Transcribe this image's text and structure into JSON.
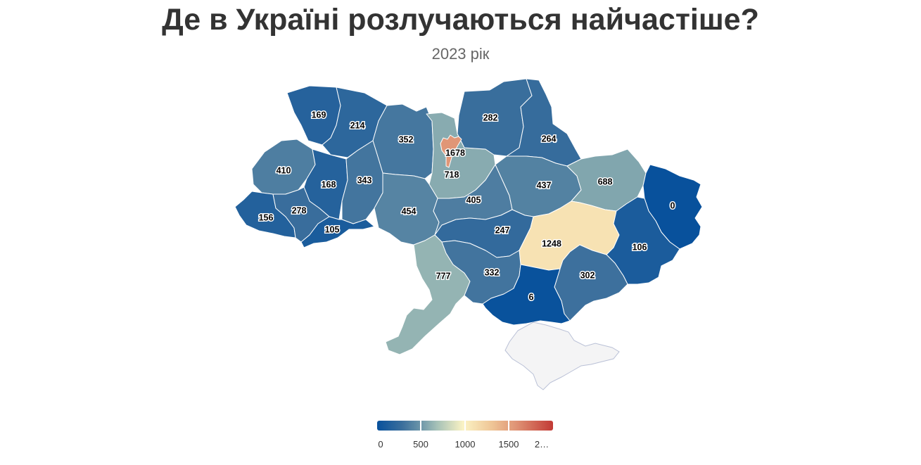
{
  "title": "Де в Україні розлучаються найчастіше?",
  "subtitle": "2023 рік",
  "colors": {
    "scale": [
      "#08519c",
      "#3a6e9c",
      "#6993a8",
      "#a5c1b7",
      "#fbf3c4",
      "#efc697",
      "#de8f72",
      "#c23a35"
    ],
    "no_data": "#f4f4f5"
  },
  "legend": {
    "min": 0,
    "max": 2000,
    "labels": [
      "0",
      "500",
      "1000",
      "1500",
      "2…"
    ]
  },
  "regions": [
    {
      "name": "Volyn",
      "value": 169,
      "label": "169"
    },
    {
      "name": "Rivne",
      "value": 214,
      "label": "214"
    },
    {
      "name": "Zhytomyr",
      "value": 352,
      "label": "352"
    },
    {
      "name": "Kyiv city",
      "value": 1678,
      "label": "1678"
    },
    {
      "name": "Kyiv oblast",
      "value": 718,
      "label": "718"
    },
    {
      "name": "Chernihiv",
      "value": 282,
      "label": "282"
    },
    {
      "name": "Sumy",
      "value": 264,
      "label": "264"
    },
    {
      "name": "Lviv",
      "value": 410,
      "label": "410"
    },
    {
      "name": "Ternopil",
      "value": 168,
      "label": "168"
    },
    {
      "name": "Khmelnytskyi",
      "value": 343,
      "label": "343"
    },
    {
      "name": "Vinnytsia",
      "value": 454,
      "label": "454"
    },
    {
      "name": "Cherkasy",
      "value": 405,
      "label": "405"
    },
    {
      "name": "Poltava",
      "value": 437,
      "label": "437"
    },
    {
      "name": "Kharkiv",
      "value": 688,
      "label": "688"
    },
    {
      "name": "Luhansk",
      "value": 0,
      "label": "0"
    },
    {
      "name": "Zakarpattia",
      "value": 156,
      "label": "156"
    },
    {
      "name": "Ivano-Frankivsk",
      "value": 278,
      "label": "278"
    },
    {
      "name": "Chernivtsi",
      "value": 105,
      "label": "105"
    },
    {
      "name": "Kirovohrad",
      "value": 247,
      "label": "247"
    },
    {
      "name": "Dnipropetrovsk",
      "value": 1248,
      "label": "1248"
    },
    {
      "name": "Donetsk",
      "value": 106,
      "label": "106"
    },
    {
      "name": "Odesa",
      "value": 777,
      "label": "777"
    },
    {
      "name": "Mykolaiv",
      "value": 332,
      "label": "332"
    },
    {
      "name": "Zaporizhzhia",
      "value": 302,
      "label": "302"
    },
    {
      "name": "Kherson",
      "value": 6,
      "label": "6"
    },
    {
      "name": "Crimea",
      "value": null,
      "label": ""
    }
  ]
}
